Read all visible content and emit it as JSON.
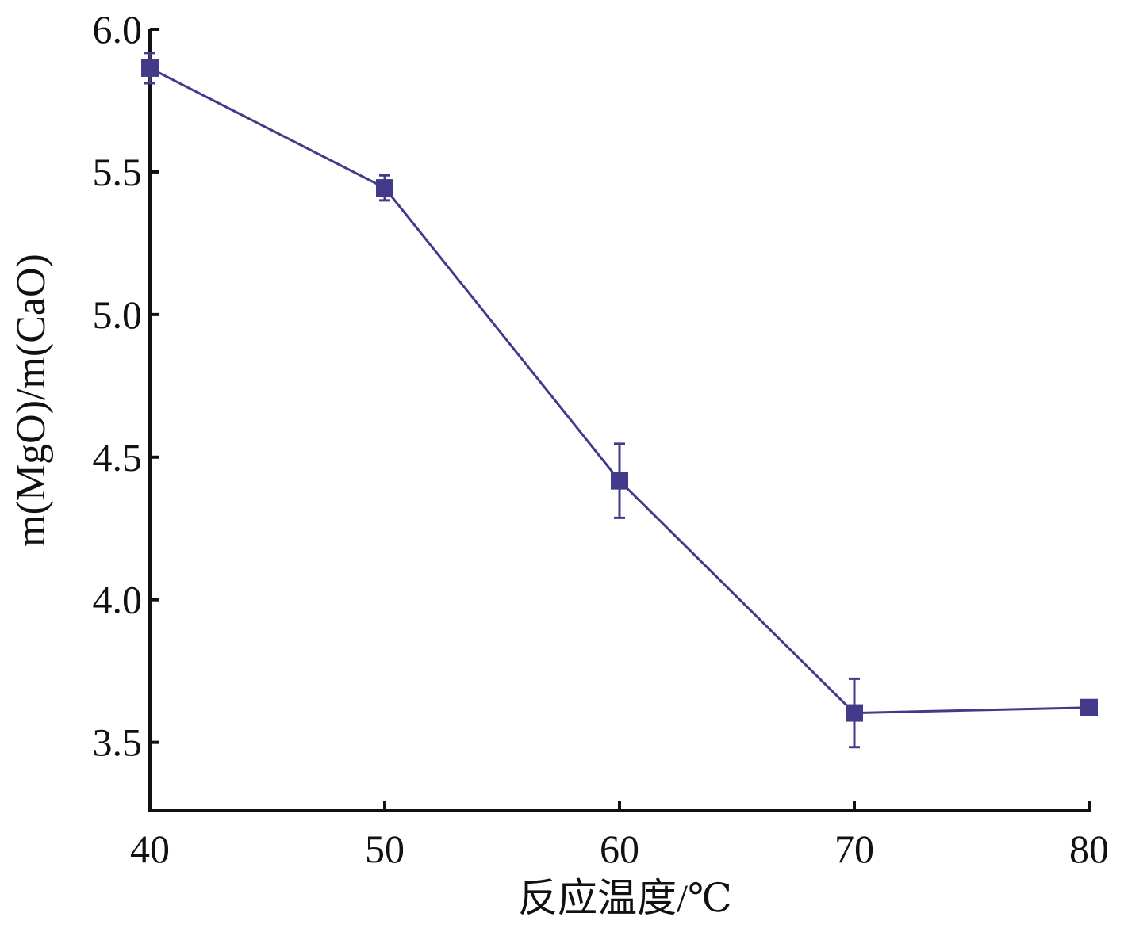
{
  "chart_data": {
    "type": "line",
    "x": [
      40,
      50,
      60,
      70,
      80
    ],
    "values": [
      5.864,
      5.444,
      4.417,
      3.603,
      3.622
    ],
    "errors": [
      0.053,
      0.044,
      0.13,
      0.12,
      0.01
    ],
    "color": "#433a8a",
    "xlabel": "反应温度/℃",
    "ylabel": "m(MgO)/m(CaO)",
    "xlim": [
      40,
      80
    ],
    "xticks": [
      40,
      50,
      60,
      70,
      80
    ],
    "ylim": [
      3.26,
      6.0
    ],
    "yticks": [
      {
        "value": 3.5,
        "label": "3.5"
      },
      {
        "value": 4.0,
        "label": "4.0"
      },
      {
        "value": 4.5,
        "label": "4.5"
      },
      {
        "value": 5.0,
        "label": "5.0"
      },
      {
        "value": 5.5,
        "label": "5.5"
      },
      {
        "value": 6.0,
        "label": "6.0"
      }
    ]
  }
}
